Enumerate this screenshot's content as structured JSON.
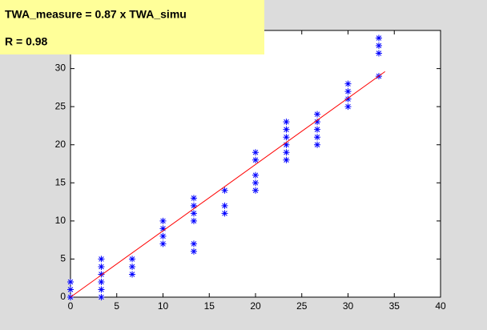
{
  "chart_data": {
    "type": "scatter",
    "annotations": [
      "TWA_measure = 0.87 x TWA_simu",
      "R = 0.98"
    ],
    "series": [
      {
        "type": "scatter",
        "color": "#0000ff",
        "x": [
          0,
          0,
          0,
          3.33,
          3.33,
          3.33,
          3.33,
          3.33,
          3.33,
          6.67,
          6.67,
          6.67,
          10,
          10,
          10,
          10,
          13.33,
          13.33,
          13.33,
          13.33,
          13.33,
          13.33,
          16.67,
          16.67,
          16.67,
          20,
          20,
          20,
          20,
          20,
          23.33,
          23.33,
          23.33,
          23.33,
          23.33,
          23.33,
          26.67,
          26.67,
          26.67,
          26.67,
          26.67,
          30,
          30,
          30,
          30,
          33.33,
          33.33,
          33.33,
          33.33
        ],
        "values": [
          0,
          1,
          2,
          0,
          1,
          2,
          3,
          4,
          5,
          3,
          4,
          5,
          7,
          8,
          9,
          10,
          6,
          7,
          10,
          11,
          12,
          13,
          11,
          12,
          14,
          14,
          15,
          16,
          18,
          19,
          18,
          19,
          20,
          21,
          22,
          23,
          20,
          21,
          22,
          23,
          24,
          25,
          26,
          27,
          28,
          29,
          32,
          33,
          34
        ]
      },
      {
        "type": "line",
        "color": "#ff0000",
        "x": [
          0,
          34
        ],
        "values": [
          0,
          29.6
        ]
      }
    ],
    "xlim": [
      0,
      40
    ],
    "xticks": [
      0,
      5,
      10,
      15,
      20,
      25,
      30,
      35,
      40
    ],
    "ylim": [
      0,
      35
    ],
    "yticks": [
      0,
      5,
      10,
      15,
      20,
      25,
      30
    ]
  }
}
